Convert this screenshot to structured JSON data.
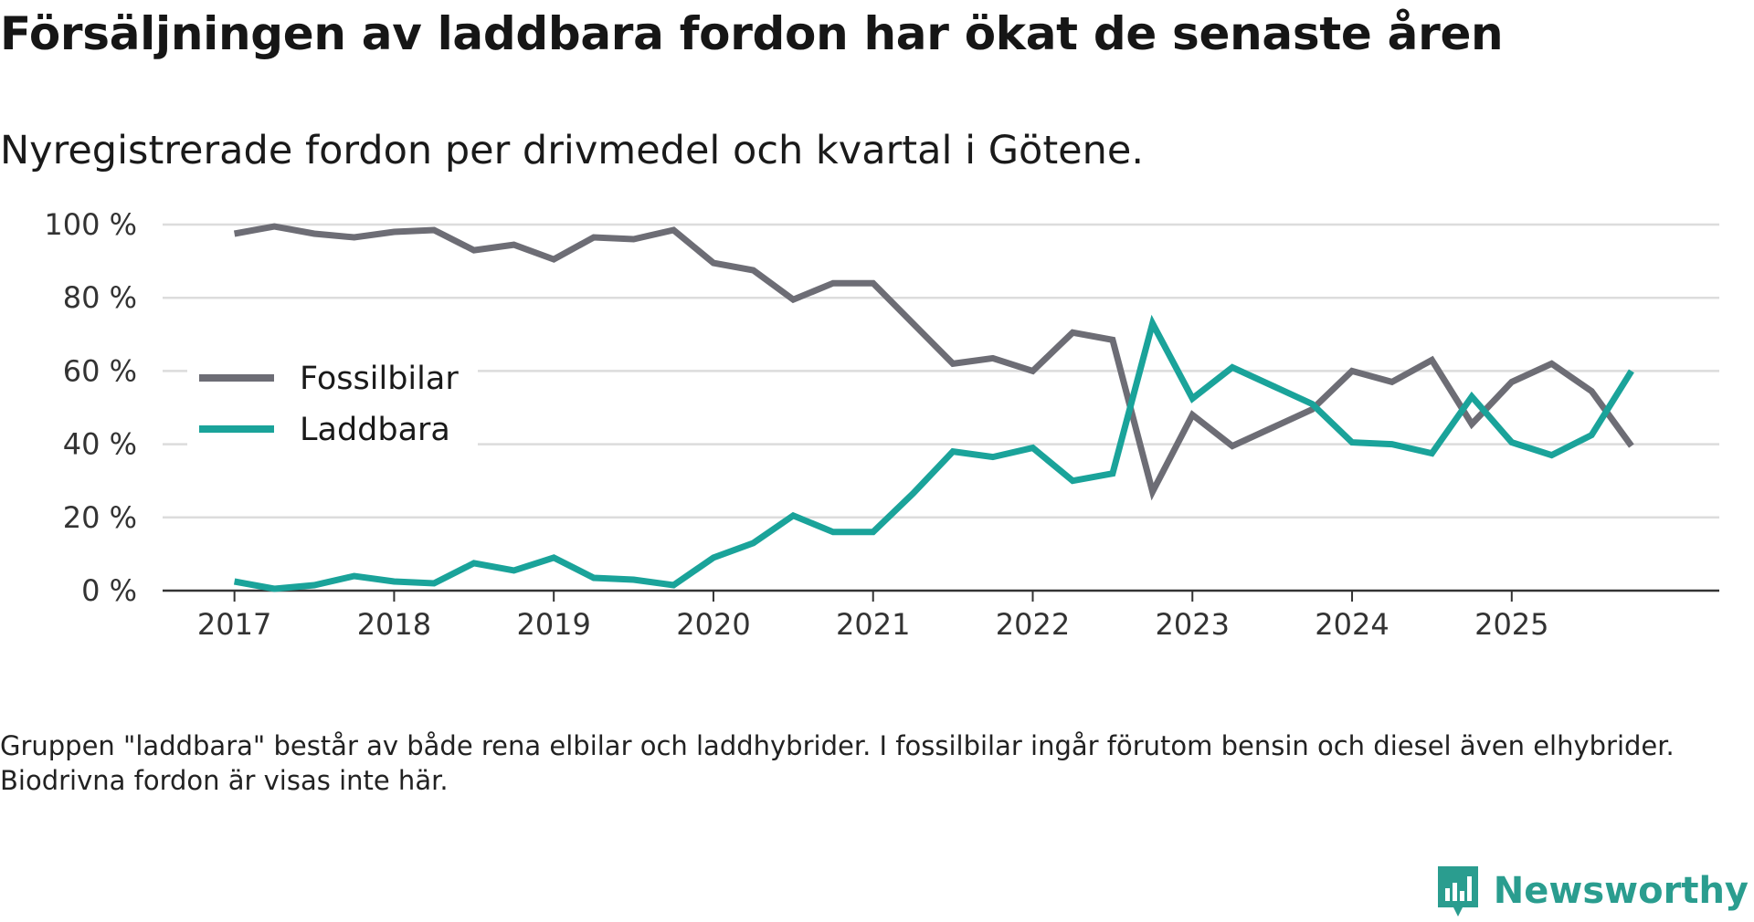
{
  "title": "Försäljningen av laddbara fordon har ökat de senaste åren",
  "subtitle": "Nyregistrerade fordon per drivmedel och kvartal i Götene.",
  "footnote": "Gruppen \"laddbara\" består av både rena elbilar och laddhybrider. I fossilbilar ingår förutom bensin och diesel även elhybrider. Biodrivna fordon är visas inte här.",
  "brand": {
    "name": "Newsworthy",
    "icon": "newsworthy-logo-icon",
    "color": "#2a9d8f"
  },
  "chart_data": {
    "type": "line",
    "title": "Försäljningen av laddbara fordon har ökat de senaste åren",
    "subtitle": "Nyregistrerade fordon per drivmedel och kvartal i Götene.",
    "xlabel": "",
    "ylabel": "",
    "x_unit": "year (quarterly)",
    "xlim": [
      2016.55,
      2026.3
    ],
    "ylim": [
      0,
      100
    ],
    "y_ticks": [
      0,
      20,
      40,
      60,
      80,
      100
    ],
    "y_tick_labels": [
      "0 %",
      "20 %",
      "40 %",
      "60 %",
      "80 %",
      "100 %"
    ],
    "x_ticks": [
      2017,
      2018,
      2019,
      2020,
      2021,
      2022,
      2023,
      2024,
      2025
    ],
    "x_tick_labels": [
      "2017",
      "2018",
      "2019",
      "2020",
      "2021",
      "2022",
      "2023",
      "2024",
      "2025"
    ],
    "grid": true,
    "legend_position": "left-middle",
    "x": [
      2017.0,
      2017.25,
      2017.5,
      2017.75,
      2018.0,
      2018.25,
      2018.5,
      2018.75,
      2019.0,
      2019.25,
      2019.5,
      2019.75,
      2020.0,
      2020.25,
      2020.5,
      2020.75,
      2021.0,
      2021.25,
      2021.5,
      2021.75,
      2022.0,
      2022.25,
      2022.5,
      2022.75,
      2023.0,
      2023.25,
      2023.5,
      2023.75,
      2024.0,
      2024.25,
      2024.5,
      2024.75,
      2025.0,
      2025.25,
      2025.5,
      2025.75
    ],
    "series": [
      {
        "name": "Fossilbilar",
        "color": "#6d6d75",
        "values": [
          97.5,
          99.5,
          97.5,
          96.5,
          98,
          98.5,
          93,
          94.5,
          90.5,
          96.5,
          96,
          98.5,
          89.5,
          87.5,
          79.5,
          84,
          84,
          73,
          62,
          63.5,
          60,
          70.5,
          68.5,
          27,
          48,
          39.5,
          44.5,
          49.5,
          60,
          57,
          63,
          45.5,
          57,
          62,
          54.5,
          39.5
        ]
      },
      {
        "name": "Laddbara",
        "color": "#1aa39a",
        "values": [
          2.5,
          0.5,
          1.5,
          4,
          2.5,
          2,
          7.5,
          5.5,
          9,
          3.5,
          3,
          1.5,
          9,
          13,
          20.5,
          16,
          16,
          26.5,
          38,
          36.5,
          39,
          30,
          32,
          73,
          52.5,
          61,
          56,
          51,
          40.5,
          40,
          37.5,
          53,
          40.5,
          37,
          42.5,
          60
        ]
      }
    ]
  }
}
